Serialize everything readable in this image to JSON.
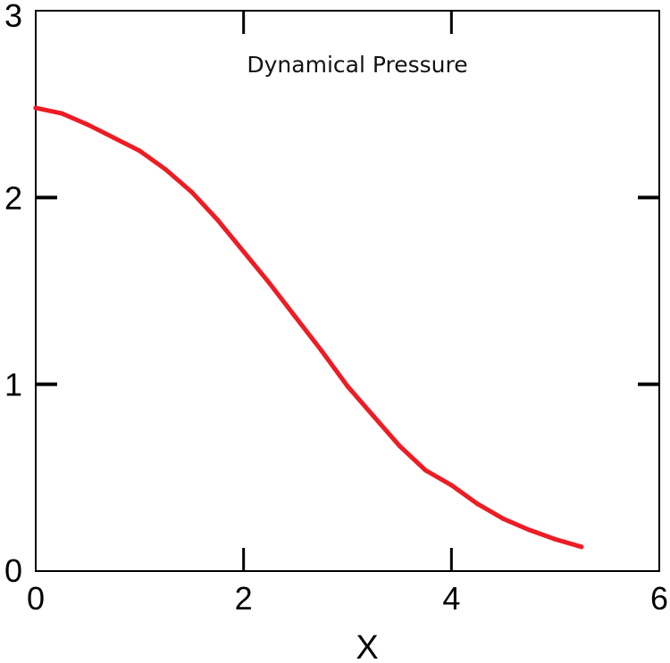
{
  "chart_data": {
    "type": "line",
    "title": "Dynamical Pressure",
    "xlabel": "X",
    "ylabel": "",
    "xlim": [
      0,
      6
    ],
    "ylim": [
      0,
      3
    ],
    "x_ticks": [
      "0",
      "2",
      "4",
      "6"
    ],
    "y_ticks": [
      "0",
      "1",
      "2",
      "3"
    ],
    "grid": false,
    "legend": "none",
    "series": [
      {
        "color": "#ee1c24",
        "x": [
          0,
          0.25,
          0.5,
          0.75,
          1.0,
          1.25,
          1.5,
          1.75,
          2.0,
          2.25,
          2.5,
          2.75,
          3.0,
          3.25,
          3.5,
          3.75,
          4.0,
          4.25,
          4.5,
          4.75,
          5.0,
          5.25
        ],
        "y": [
          2.48,
          2.45,
          2.39,
          2.32,
          2.25,
          2.15,
          2.03,
          1.88,
          1.71,
          1.54,
          1.36,
          1.18,
          0.99,
          0.83,
          0.67,
          0.54,
          0.46,
          0.36,
          0.28,
          0.22,
          0.17,
          0.13
        ]
      }
    ]
  }
}
